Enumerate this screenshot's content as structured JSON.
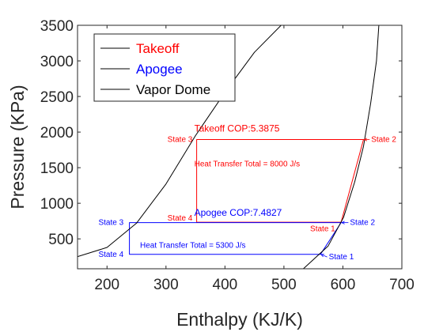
{
  "chart_data": {
    "type": "line",
    "xlabel": "Enthalpy (KJ/K)",
    "ylabel": "Pressure (KPa)",
    "xlim": [
      150,
      700
    ],
    "ylim": [
      80,
      3500
    ],
    "xticks": [
      200,
      300,
      400,
      500,
      600,
      700
    ],
    "yticks": [
      500,
      1000,
      1500,
      2000,
      2500,
      3000,
      3500
    ],
    "grid": false,
    "legend_position": "top-left",
    "legend": [
      {
        "label": "Takeoff",
        "color": "#ff0000"
      },
      {
        "label": "Apogee",
        "color": "#0000ff"
      },
      {
        "label": "Vapor Dome",
        "color": "#000000"
      }
    ],
    "series": [
      {
        "name": "Takeoff",
        "color": "#ff0000",
        "x": [
          597,
          635,
          352,
          352,
          597
        ],
        "y": [
          734,
          1895,
          1895,
          734,
          734
        ]
      },
      {
        "name": "Apogee",
        "color": "#0000ff",
        "x": [
          562,
          597,
          238,
          238,
          562
        ],
        "y": [
          282,
          728,
          728,
          282,
          282
        ]
      },
      {
        "name": "Vapor Dome",
        "color": "#000000",
        "x": [
          150,
          200,
          250,
          300,
          350,
          400,
          450,
          500,
          530
        ],
        "y": [
          250,
          380,
          720,
          1270,
          1950,
          2560,
          3120,
          3540,
          3560
        ]
      },
      {
        "name": "Vapor Dome",
        "color": "#000000",
        "x": [
          533,
          575,
          601,
          620,
          635,
          647,
          657,
          661
        ],
        "y": [
          80,
          400,
          800,
          1300,
          1800,
          2400,
          3000,
          3500
        ]
      }
    ],
    "annotations": [
      {
        "text": "Takeoff COP:5.3875",
        "x": 348,
        "y": 2040,
        "color": "#ff0000",
        "size": "md"
      },
      {
        "text": "Heat Transfer Total = 8000 J/s",
        "x": 348,
        "y": 1550,
        "color": "#ff0000",
        "size": "sm"
      },
      {
        "text": "Apogee COP:7.4827",
        "x": 348,
        "y": 860,
        "color": "#0000ff",
        "size": "md"
      },
      {
        "text": "Heat Transfer Total = 5300 J/s",
        "x": 256,
        "y": 410,
        "color": "#0000ff",
        "size": "sm"
      },
      {
        "text": "State 3",
        "x": 345,
        "y": 1895,
        "color": "#ff0000",
        "size": "sm",
        "anchor": "end"
      },
      {
        "text": "State 4",
        "x": 345,
        "y": 790,
        "color": "#ff0000",
        "size": "sm",
        "anchor": "end"
      },
      {
        "text": "State 2",
        "x": 648,
        "y": 1895,
        "color": "#ff0000",
        "size": "sm",
        "arrow_to": [
          636,
          1895
        ]
      },
      {
        "text": "State 1",
        "x": 587,
        "y": 640,
        "color": "#ff0000",
        "size": "sm",
        "anchor": "end"
      },
      {
        "text": "State 3",
        "x": 228,
        "y": 728,
        "color": "#0000ff",
        "size": "sm",
        "anchor": "end"
      },
      {
        "text": "State 4",
        "x": 228,
        "y": 282,
        "color": "#0000ff",
        "size": "sm",
        "anchor": "end"
      },
      {
        "text": "State 2",
        "x": 612,
        "y": 728,
        "color": "#0000ff",
        "size": "sm",
        "arrow_to": [
          598,
          728
        ]
      },
      {
        "text": "State 1",
        "x": 576,
        "y": 245,
        "color": "#0000ff",
        "size": "sm",
        "arrow_to": [
          563,
          282
        ]
      }
    ]
  }
}
